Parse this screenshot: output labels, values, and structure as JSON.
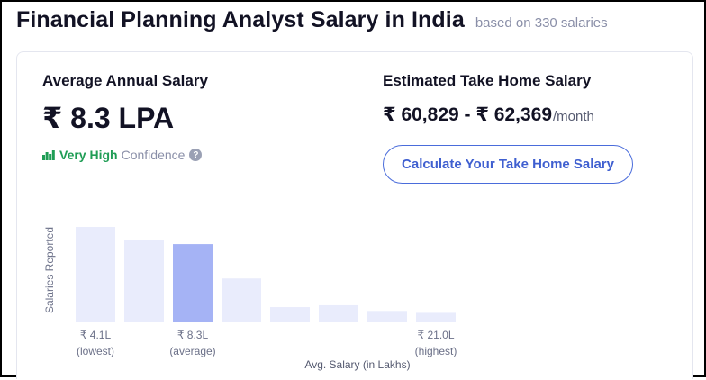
{
  "header": {
    "title": "Financial Planning Analyst Salary in India",
    "subtitle": "based on 330 salaries"
  },
  "average": {
    "label": "Average Annual Salary",
    "value": "₹ 8.3 LPA",
    "confidence_level": "Very High",
    "confidence_word": "Confidence",
    "help_symbol": "?"
  },
  "take_home": {
    "label": "Estimated Take Home Salary",
    "range": "₹ 60,829 - ₹ 62,369",
    "unit": "/month",
    "button_label": "Calculate Your Take Home Salary"
  },
  "colors": {
    "bar": "#e9ecfc",
    "bar_highlight": "#a5b3f5",
    "confidence": "#1f9d55",
    "accent": "#3f5fd0"
  },
  "chart_data": {
    "type": "bar",
    "ylabel": "Salaries Reported",
    "xlabel": "Avg. Salary (in Lakhs)",
    "values": [
      100,
      86,
      82,
      46,
      16,
      18,
      12,
      10
    ],
    "highlight_index": 2,
    "ylim": [
      0,
      100
    ],
    "tick_labels": [
      {
        "index": 0,
        "value": "₹ 4.1L",
        "note": "(lowest)"
      },
      {
        "index": 2,
        "value": "₹ 8.3L",
        "note": "(average)"
      },
      {
        "index": 7,
        "value": "₹ 21.0L",
        "note": "(highest)"
      }
    ]
  }
}
